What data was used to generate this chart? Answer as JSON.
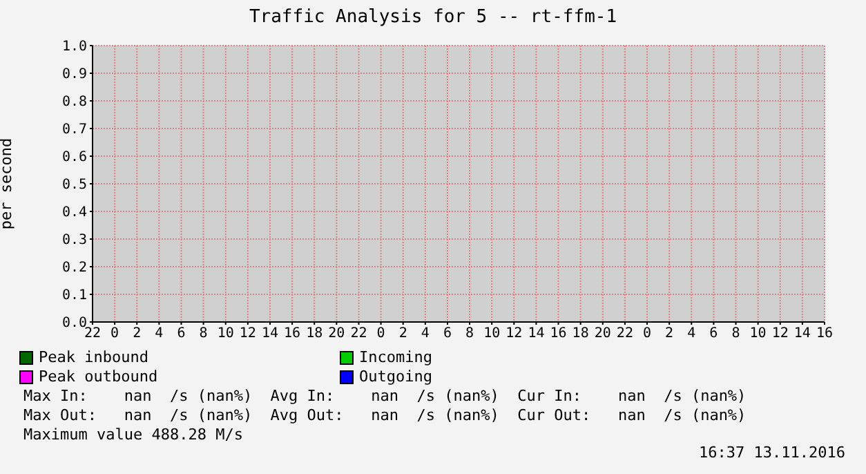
{
  "chart_data": {
    "type": "line",
    "title": "Traffic Analysis for 5 -- rt-ffm-1",
    "ylabel": "per second",
    "categories": [
      "22",
      "0",
      "2",
      "4",
      "6",
      "8",
      "10",
      "12",
      "14",
      "16",
      "18",
      "20",
      "22",
      "0",
      "2",
      "4",
      "6",
      "8",
      "10",
      "12",
      "14",
      "16",
      "18",
      "20",
      "22",
      "0",
      "2",
      "4",
      "6",
      "8",
      "10",
      "12",
      "14",
      "16"
    ],
    "series": [
      {
        "name": "Peak inbound",
        "color": "#006600",
        "values": [
          null,
          null,
          null,
          null,
          null,
          null,
          null,
          null,
          null,
          null,
          null,
          null,
          null,
          null,
          null,
          null,
          null,
          null,
          null,
          null,
          null,
          null,
          null,
          null,
          null,
          null,
          null,
          null,
          null,
          null,
          null,
          null,
          null,
          null
        ]
      },
      {
        "name": "Incoming",
        "color": "#00cc00",
        "values": [
          null,
          null,
          null,
          null,
          null,
          null,
          null,
          null,
          null,
          null,
          null,
          null,
          null,
          null,
          null,
          null,
          null,
          null,
          null,
          null,
          null,
          null,
          null,
          null,
          null,
          null,
          null,
          null,
          null,
          null,
          null,
          null,
          null,
          null
        ]
      },
      {
        "name": "Peak outbound",
        "color": "#ff00ff",
        "values": [
          null,
          null,
          null,
          null,
          null,
          null,
          null,
          null,
          null,
          null,
          null,
          null,
          null,
          null,
          null,
          null,
          null,
          null,
          null,
          null,
          null,
          null,
          null,
          null,
          null,
          null,
          null,
          null,
          null,
          null,
          null,
          null,
          null,
          null
        ]
      },
      {
        "name": "Outgoing",
        "color": "#0000ff",
        "values": [
          null,
          null,
          null,
          null,
          null,
          null,
          null,
          null,
          null,
          null,
          null,
          null,
          null,
          null,
          null,
          null,
          null,
          null,
          null,
          null,
          null,
          null,
          null,
          null,
          null,
          null,
          null,
          null,
          null,
          null,
          null,
          null,
          null,
          null
        ]
      }
    ],
    "ylim": [
      0,
      1
    ],
    "yticks": [
      {
        "value": 0,
        "label": "0.0"
      },
      {
        "value": 0.1,
        "label": "0.1"
      },
      {
        "value": 0.2,
        "label": "0.2"
      },
      {
        "value": 0.3,
        "label": "0.3"
      },
      {
        "value": 0.4,
        "label": "0.4"
      },
      {
        "value": 0.5,
        "label": "0.5"
      },
      {
        "value": 0.6,
        "label": "0.6"
      },
      {
        "value": 0.7,
        "label": "0.7"
      },
      {
        "value": 0.8,
        "label": "0.8"
      },
      {
        "value": 0.9,
        "label": "0.9"
      },
      {
        "value": 1,
        "label": "1.0"
      }
    ],
    "grid": true,
    "legend": "bottom",
    "annotations": [
      "Max In:    nan  /s (nan%)  Avg In:    nan  /s (nan%)  Cur In:    nan  /s (nan%)",
      "Max Out:   nan  /s (nan%)  Avg Out:   nan  /s (nan%)  Cur Out:   nan  /s (nan%)",
      "Maximum value 488.28 M/s",
      "16:37 13.11.2016"
    ]
  }
}
